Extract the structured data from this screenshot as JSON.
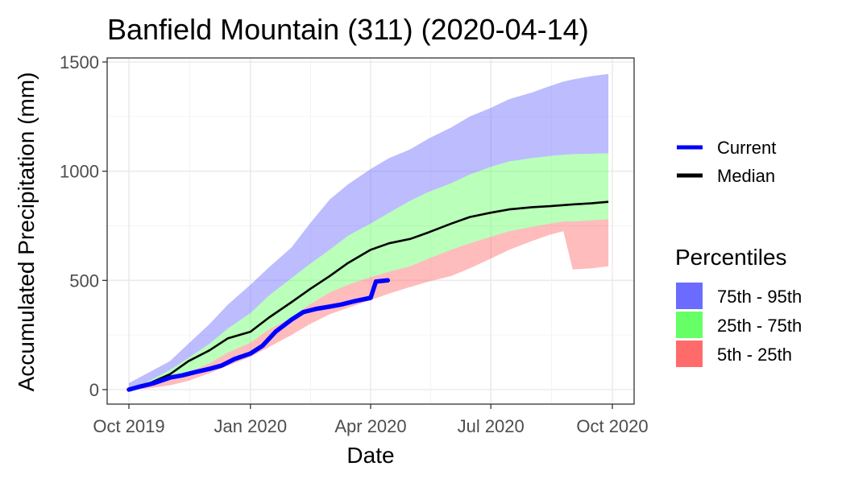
{
  "chart_data": {
    "type": "area",
    "title": "Banfield Mountain (311) (2020-04-14)",
    "xlabel": "Date",
    "ylabel": "Accumulated Precipitation (mm)",
    "xlim": [
      "2019-10-01",
      "2020-10-01"
    ],
    "ylim": [
      -70,
      1510
    ],
    "x_ticks": [
      "2019-10-01",
      "2020-01-01",
      "2020-04-01",
      "2020-07-01",
      "2020-10-01"
    ],
    "x_tick_labels": [
      "Oct 2019",
      "Jan 2020",
      "Apr 2020",
      "Jul 2020",
      "Oct 2020"
    ],
    "y_ticks": [
      0,
      500,
      1000,
      1500
    ],
    "y_tick_labels": [
      "0",
      "500",
      "1000",
      "1500"
    ],
    "grid": true,
    "legend_position": "right",
    "legend_lines": [
      {
        "label": "Current",
        "color": "#0000ff"
      },
      {
        "label": "Median",
        "color": "#000000"
      }
    ],
    "legend_fill_title": "Percentiles",
    "legend_fills": [
      {
        "label": "75th - 95th",
        "color": "#6b6bff"
      },
      {
        "label": "25th - 75th",
        "color": "#66ff66"
      },
      {
        "label": "5th - 25th",
        "color": "#ff6b6b"
      }
    ],
    "bands": {
      "dates": [
        "2019-10-01",
        "2019-10-15",
        "2019-11-01",
        "2019-11-15",
        "2019-12-01",
        "2019-12-15",
        "2020-01-01",
        "2020-01-15",
        "2020-02-01",
        "2020-02-15",
        "2020-03-01",
        "2020-03-15",
        "2020-04-01",
        "2020-04-15",
        "2020-05-01",
        "2020-05-15",
        "2020-06-01",
        "2020-06-15",
        "2020-07-01",
        "2020-07-15",
        "2020-08-01",
        "2020-08-15",
        "2020-08-25",
        "2020-09-01",
        "2020-09-15",
        "2020-09-28"
      ],
      "p5": [
        0,
        5,
        20,
        40,
        75,
        110,
        150,
        195,
        250,
        300,
        345,
        375,
        410,
        440,
        470,
        495,
        520,
        555,
        600,
        640,
        680,
        710,
        725,
        550,
        555,
        565
      ],
      "p25": [
        0,
        15,
        45,
        80,
        120,
        170,
        215,
        275,
        330,
        390,
        445,
        480,
        515,
        540,
        565,
        600,
        640,
        670,
        700,
        725,
        745,
        760,
        770,
        770,
        775,
        780
      ],
      "p75": [
        10,
        35,
        90,
        145,
        210,
        280,
        350,
        430,
        510,
        575,
        640,
        705,
        760,
        810,
        865,
        905,
        945,
        985,
        1020,
        1045,
        1060,
        1070,
        1075,
        1078,
        1080,
        1082
      ],
      "p95": [
        30,
        75,
        130,
        210,
        300,
        390,
        480,
        560,
        650,
        760,
        870,
        940,
        1010,
        1060,
        1100,
        1150,
        1200,
        1250,
        1290,
        1330,
        1360,
        1390,
        1410,
        1420,
        1435,
        1445
      ]
    },
    "series": [
      {
        "name": "Median",
        "color": "#000000",
        "x": [
          "2019-10-01",
          "2019-10-15",
          "2019-11-01",
          "2019-11-15",
          "2019-12-01",
          "2019-12-15",
          "2020-01-01",
          "2020-01-15",
          "2020-02-01",
          "2020-02-15",
          "2020-03-01",
          "2020-03-15",
          "2020-04-01",
          "2020-04-15",
          "2020-05-01",
          "2020-05-15",
          "2020-06-01",
          "2020-06-15",
          "2020-07-01",
          "2020-07-15",
          "2020-08-01",
          "2020-08-15",
          "2020-09-01",
          "2020-09-15",
          "2020-09-28"
        ],
        "y": [
          5,
          25,
          70,
          130,
          180,
          235,
          265,
          330,
          400,
          460,
          520,
          580,
          640,
          670,
          690,
          720,
          760,
          790,
          810,
          825,
          835,
          840,
          848,
          853,
          860
        ]
      },
      {
        "name": "Current",
        "color": "#0000ff",
        "x": [
          "2019-10-01",
          "2019-10-10",
          "2019-10-20",
          "2019-11-01",
          "2019-11-10",
          "2019-11-20",
          "2019-12-01",
          "2019-12-10",
          "2019-12-20",
          "2020-01-01",
          "2020-01-10",
          "2020-01-20",
          "2020-02-01",
          "2020-02-10",
          "2020-02-20",
          "2020-03-01",
          "2020-03-10",
          "2020-03-20",
          "2020-04-01",
          "2020-04-05",
          "2020-04-14"
        ],
        "y": [
          0,
          15,
          30,
          55,
          65,
          80,
          95,
          110,
          140,
          165,
          200,
          265,
          320,
          355,
          370,
          380,
          390,
          405,
          420,
          495,
          500
        ]
      }
    ]
  }
}
